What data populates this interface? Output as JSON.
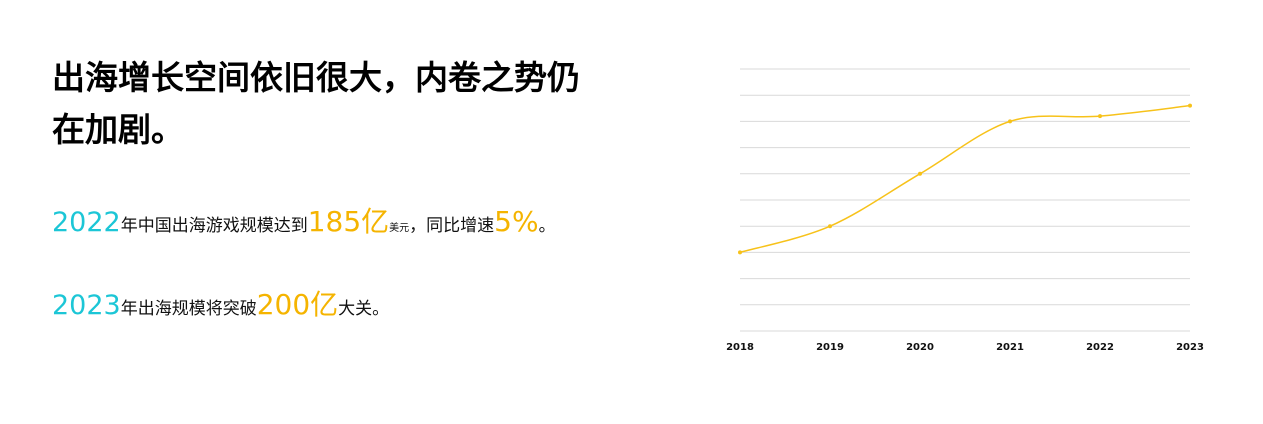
{
  "title": "出海增长空间依旧很大，内卷之势仍在加剧。",
  "lines": [
    [
      {
        "text": "2022",
        "style": "year"
      },
      {
        "text": "年中国出海游戏规模达到",
        "style": "plain"
      },
      {
        "text": "185亿",
        "style": "highlight"
      },
      {
        "text": "美元",
        "style": "small"
      },
      {
        "text": "，同比增速",
        "style": "plain"
      },
      {
        "text": "5%",
        "style": "highlight"
      },
      {
        "text": "。",
        "style": "plain"
      }
    ],
    [
      {
        "text": "2023",
        "style": "year"
      },
      {
        "text": "年出海规模将突破",
        "style": "plain"
      },
      {
        "text": "200亿",
        "style": "highlight"
      },
      {
        "text": "大关。",
        "style": "plain"
      }
    ]
  ],
  "styles": {
    "year": {
      "color": "#1cc6d6",
      "size": 27
    },
    "plain": {
      "color": "#111111",
      "size": 17
    },
    "highlight": {
      "color": "#f5b400",
      "size": 28
    },
    "small": {
      "color": "#111111",
      "size": 10
    }
  },
  "chart_data": {
    "type": "line",
    "categories": [
      "2018",
      "2019",
      "2020",
      "2021",
      "2022",
      "2023"
    ],
    "values": [
      30,
      40,
      60,
      80,
      82,
      86
    ],
    "color": "#f7c21a",
    "ylim": [
      0,
      100
    ],
    "yticks": [
      0,
      10,
      20,
      30,
      40,
      50,
      60,
      70,
      80,
      90,
      100
    ],
    "grid": true,
    "ytick_labels": false,
    "smooth": true
  }
}
